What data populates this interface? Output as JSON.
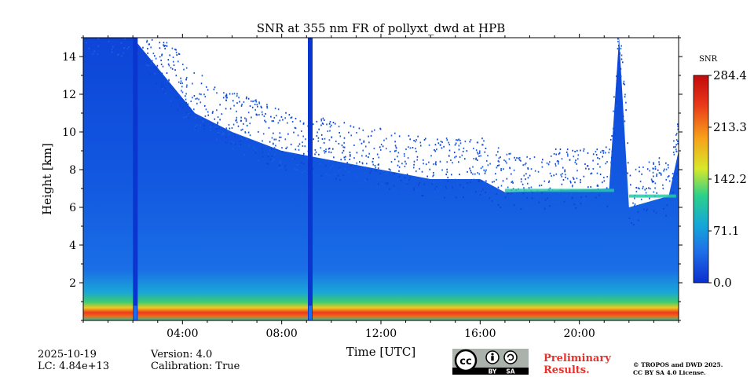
{
  "chart_data": {
    "type": "heatmap",
    "title": "SNR at 355 nm FR of pollyxt_dwd at HPB",
    "xlabel": "Time [UTC]",
    "ylabel": "Height [km]",
    "xlim": [
      0,
      24
    ],
    "ylim": [
      0,
      15
    ],
    "xticks": [
      4,
      8,
      12,
      16,
      20
    ],
    "xtick_labels": [
      "04:00",
      "08:00",
      "12:00",
      "16:00",
      "20:00"
    ],
    "yticks": [
      2,
      4,
      6,
      8,
      10,
      12,
      14
    ],
    "colorbar": {
      "label": "SNR",
      "min": 0.0,
      "max": 284.4,
      "ticks": [
        0.0,
        71.1,
        142.2,
        213.3,
        284.4
      ],
      "tick_labels": [
        "0.0",
        "71.1",
        "142.2",
        "213.3",
        "284.4"
      ],
      "colormap": [
        "#0b2fcf",
        "#1f6fe8",
        "#15a7d8",
        "#2bd18a",
        "#d8e82a",
        "#f7a01a",
        "#e8381a",
        "#c20a0a"
      ]
    },
    "features": {
      "surface_layer_top_km": 0.7,
      "dropouts_hours": [
        2.1,
        9.15
      ],
      "cloud_layers": [
        {
          "from_h": 17.0,
          "to_h": 21.4,
          "height_km": 6.9
        },
        {
          "from_h": 22.0,
          "to_h": 23.9,
          "height_km": 6.6
        }
      ],
      "signal_top_km": [
        [
          0,
          15
        ],
        [
          2,
          15
        ],
        [
          4.5,
          11
        ],
        [
          6,
          10
        ],
        [
          8,
          9
        ],
        [
          10,
          8.5
        ],
        [
          12,
          8
        ],
        [
          14,
          7.5
        ],
        [
          16,
          7.5
        ],
        [
          17,
          6.8
        ],
        [
          21.2,
          7.0
        ],
        [
          21.6,
          15
        ],
        [
          22,
          6
        ],
        [
          23.6,
          6.6
        ],
        [
          24,
          9
        ]
      ]
    }
  },
  "footer": {
    "date": "2025-10-19",
    "lc": "LC: 4.84e+13",
    "version": "Version: 4.0",
    "calibration": "Calibration: True",
    "license_badge": {
      "cc": "cc",
      "by": "BY",
      "sa": "SA"
    },
    "preliminary": [
      "Preliminary",
      "Results."
    ],
    "copyright": [
      "© TROPOS and DWD 2025.",
      "CC BY SA 4.0 License."
    ]
  }
}
